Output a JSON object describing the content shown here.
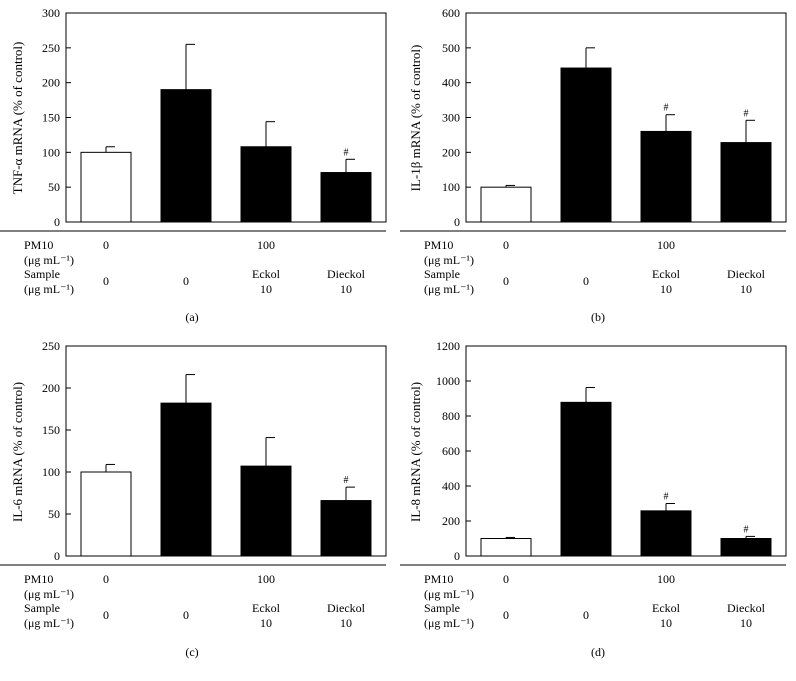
{
  "figure": {
    "panel_labels": [
      "(a)",
      "(b)",
      "(c)",
      "(d)"
    ],
    "row_labels": {
      "pm10": [
        "PM10",
        "(μg mL⁻¹)"
      ],
      "sample": [
        "Sample",
        "(μg mL⁻¹)"
      ]
    },
    "pm10_values": [
      "0",
      "100"
    ],
    "sample_values": [
      [
        "0"
      ],
      [
        "0"
      ],
      [
        "Eckol",
        "10"
      ],
      [
        "Dieckol",
        "10"
      ]
    ],
    "significance_mark": "#"
  },
  "chart_data": [
    {
      "type": "bar",
      "panel": "(a)",
      "ylabel": "TNF-α mRNA (% of control)",
      "ylim": [
        0,
        300
      ],
      "yticks": [
        0,
        50,
        100,
        150,
        200,
        250,
        300
      ],
      "categories": [
        "0 / 0",
        "100 / 0",
        "100 / Eckol 10",
        "100 / Dieckol 10"
      ],
      "values": [
        100,
        190,
        108,
        71
      ],
      "errors": [
        8,
        65,
        36,
        19
      ],
      "fill": [
        "#ffffff",
        "#000000",
        "#000000",
        "#000000"
      ],
      "marks": [
        "",
        "",
        "",
        "#"
      ]
    },
    {
      "type": "bar",
      "panel": "(b)",
      "ylabel": "IL-1β mRNA (% of control)",
      "ylim": [
        0,
        600
      ],
      "yticks": [
        0,
        100,
        200,
        300,
        400,
        500,
        600
      ],
      "categories": [
        "0 / 0",
        "100 / 0",
        "100 / Eckol 10",
        "100 / Dieckol 10"
      ],
      "values": [
        100,
        442,
        260,
        228
      ],
      "errors": [
        5,
        58,
        48,
        64
      ],
      "fill": [
        "#ffffff",
        "#000000",
        "#000000",
        "#000000"
      ],
      "marks": [
        "",
        "",
        "#",
        "#"
      ]
    },
    {
      "type": "bar",
      "panel": "(c)",
      "ylabel": "IL-6 mRNA (% of control)",
      "ylim": [
        0,
        250
      ],
      "yticks": [
        0,
        50,
        100,
        150,
        200,
        250
      ],
      "categories": [
        "0 / 0",
        "100 / 0",
        "100 / Eckol 10",
        "100 / Dieckol 10"
      ],
      "values": [
        100,
        182,
        107,
        66
      ],
      "errors": [
        9,
        34,
        34,
        16
      ],
      "fill": [
        "#ffffff",
        "#000000",
        "#000000",
        "#000000"
      ],
      "marks": [
        "",
        "",
        "",
        "#"
      ]
    },
    {
      "type": "bar",
      "panel": "(d)",
      "ylabel": "IL-8 mRNA (% of control)",
      "ylim": [
        0,
        1200
      ],
      "yticks": [
        0,
        200,
        400,
        600,
        800,
        1000,
        1200
      ],
      "categories": [
        "0 / 0",
        "100 / 0",
        "100 / Eckol 10",
        "100 / Dieckol 10"
      ],
      "values": [
        100,
        878,
        258,
        100
      ],
      "errors": [
        6,
        85,
        42,
        12
      ],
      "fill": [
        "#ffffff",
        "#000000",
        "#000000",
        "#000000"
      ],
      "marks": [
        "",
        "",
        "#",
        "#"
      ]
    }
  ]
}
